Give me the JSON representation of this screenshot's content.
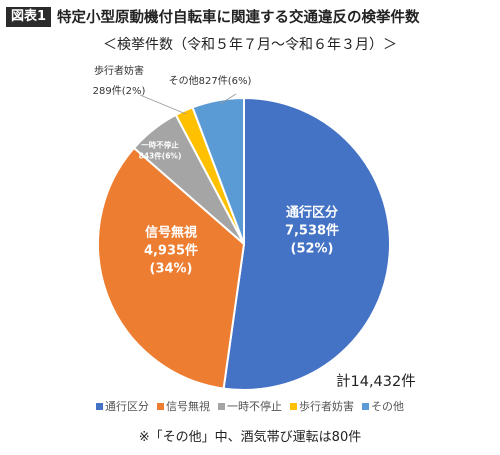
{
  "header": {
    "badge": "図表1",
    "title": "特定小型原動機付自転車に関連する交通違反の検挙件数",
    "subtitle": "＜検挙件数（令和５年７月～令和６年３月）＞"
  },
  "chart_data": {
    "type": "pie",
    "total_label": "計14,432件",
    "slices": [
      {
        "name": "通行区分",
        "value": 7538,
        "value_label": "7,538件",
        "percent_label": "(52%)",
        "color": "#4472C4"
      },
      {
        "name": "信号無視",
        "value": 4935,
        "value_label": "4,935件",
        "percent_label": "(34%)",
        "color": "#ED7D31"
      },
      {
        "name": "一時不停止",
        "value": 843,
        "value_label": "843件(6%)",
        "percent_label": "",
        "color": "#A5A5A5"
      },
      {
        "name": "歩行者妨害",
        "value": 289,
        "value_label": "289件(2%)",
        "percent_label": "",
        "color": "#FFC000"
      },
      {
        "name": "その他",
        "value": 827,
        "value_label": "その他827件(6%)",
        "percent_label": "",
        "color": "#5B9BD5"
      }
    ],
    "legend_position": "bottom"
  },
  "note": "※「その他」中、酒気帯び運転は80件"
}
